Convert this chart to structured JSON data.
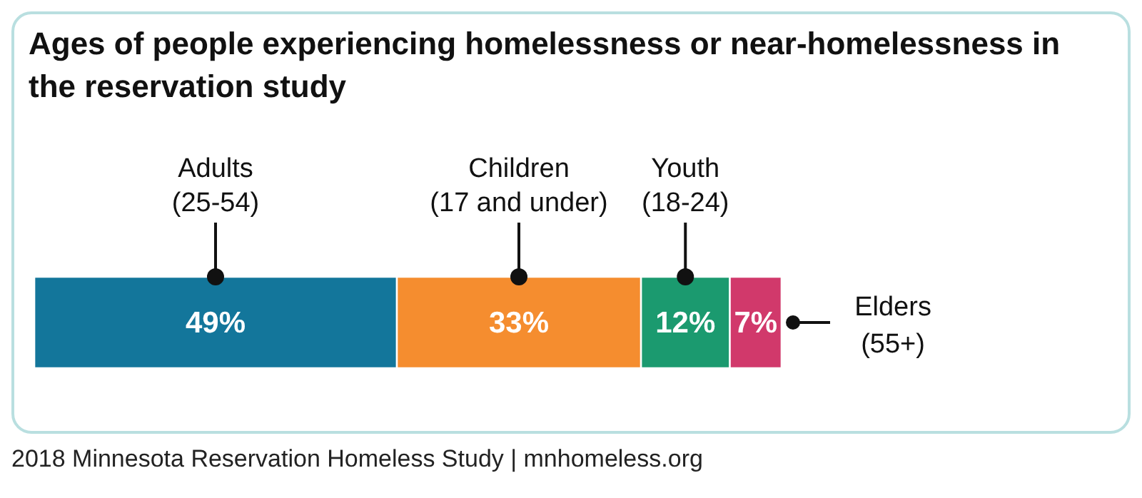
{
  "chart_data": {
    "type": "bar",
    "orientation": "horizontal",
    "stacked": true,
    "title": "Ages of people experiencing homelessness or near-homelessness in the reservation study",
    "categories": [
      null
    ],
    "series": [
      {
        "name": "Adults\n(25-54)",
        "color": "#13769b",
        "values": [
          49
        ],
        "value_labels": [
          "49%"
        ]
      },
      {
        "name": "Children\n(17 and under)",
        "color": "#f58d2f",
        "values": [
          33
        ],
        "value_labels": [
          "33%"
        ]
      },
      {
        "name": "Youth\n(18-24)",
        "color": "#1b9a6f",
        "values": [
          12
        ],
        "value_labels": [
          "12%"
        ]
      },
      {
        "name": "Elders\n(55+)",
        "color": "#d1396b",
        "values": [
          7
        ],
        "value_labels": [
          "7%"
        ]
      }
    ],
    "annotations": [
      "2018 Minnesota Reservation Homeless Study | mnhomeless.org"
    ],
    "legend": false
  }
}
